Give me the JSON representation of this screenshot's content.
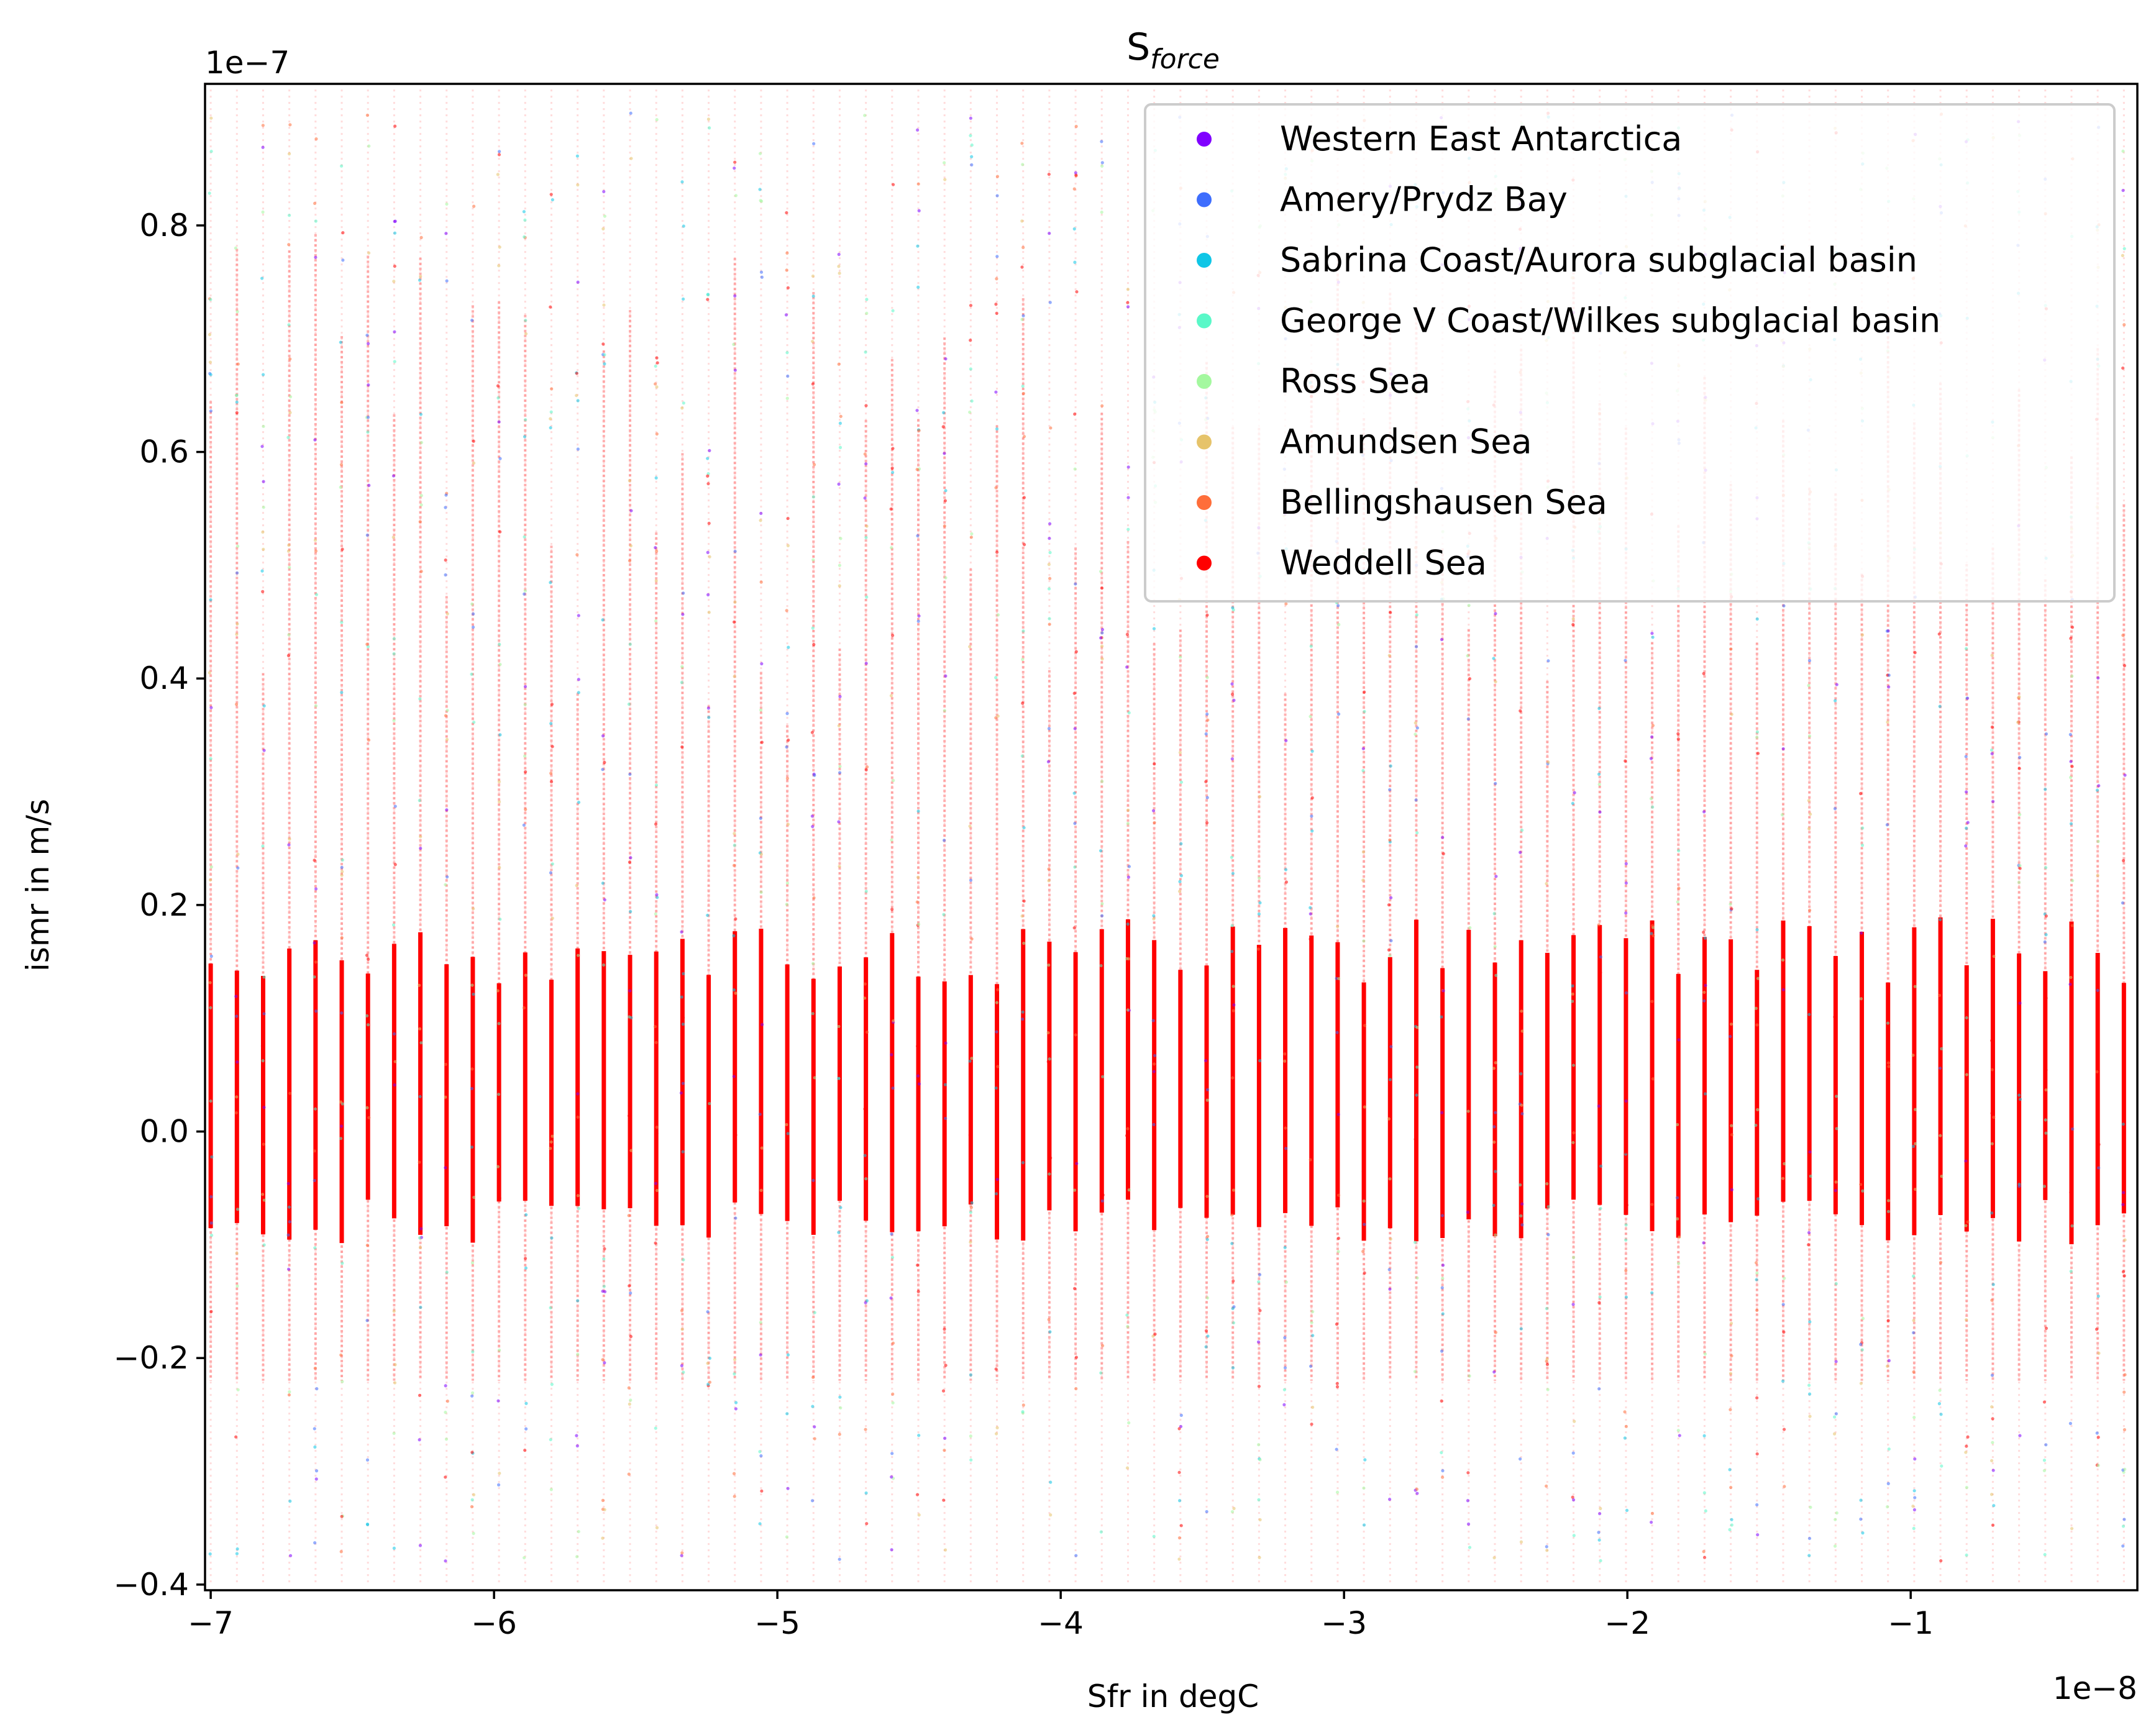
{
  "chart_data": {
    "type": "scatter",
    "title": {
      "base": "S",
      "sub": "force"
    },
    "xlabel": "Sfr in degC",
    "ylabel": "ismr in m/s",
    "x_offset_text": "1e−8",
    "y_offset_text": "1e−7",
    "x_scale": 1e-08,
    "y_scale": 1e-07,
    "xlim": [
      -7.02,
      -0.2
    ],
    "ylim": [
      -0.405,
      0.925
    ],
    "xticks": [
      -7,
      -6,
      -5,
      -4,
      -3,
      -2,
      -1
    ],
    "xtick_labels": [
      "−7",
      "−6",
      "−5",
      "−4",
      "−3",
      "−2",
      "−1"
    ],
    "yticks": [
      -0.4,
      -0.2,
      0.0,
      0.2,
      0.4,
      0.6,
      0.8
    ],
    "ytick_labels": [
      "−0.4",
      "−0.2",
      "0.0",
      "0.2",
      "0.4",
      "0.6",
      "0.8"
    ],
    "grid": false,
    "legend_position": "top-right",
    "series": [
      {
        "name": "Western East Antarctica",
        "color": "#8000ff"
      },
      {
        "name": "Amery/Prydz Bay",
        "color": "#3e6dfd"
      },
      {
        "name": "Sabrina Coast/Aurora subglacial basin",
        "color": "#0fc6e6"
      },
      {
        "name": "George V Coast/Wilkes subglacial basin",
        "color": "#5af8c8"
      },
      {
        "name": "Ross Sea",
        "color": "#a4f89f"
      },
      {
        "name": "Amundsen Sea",
        "color": "#e6c36a"
      },
      {
        "name": "Bellingshausen Sea",
        "color": "#ff6e3a"
      },
      {
        "name": "Weddell Sea",
        "color": "#ff0000"
      }
    ],
    "columns": {
      "x_start": -7.0,
      "x_step": -0.0925,
      "count": 74,
      "note_dense_range": [
        -0.06,
        0.13
      ],
      "dense_color": "#ff0000"
    }
  }
}
